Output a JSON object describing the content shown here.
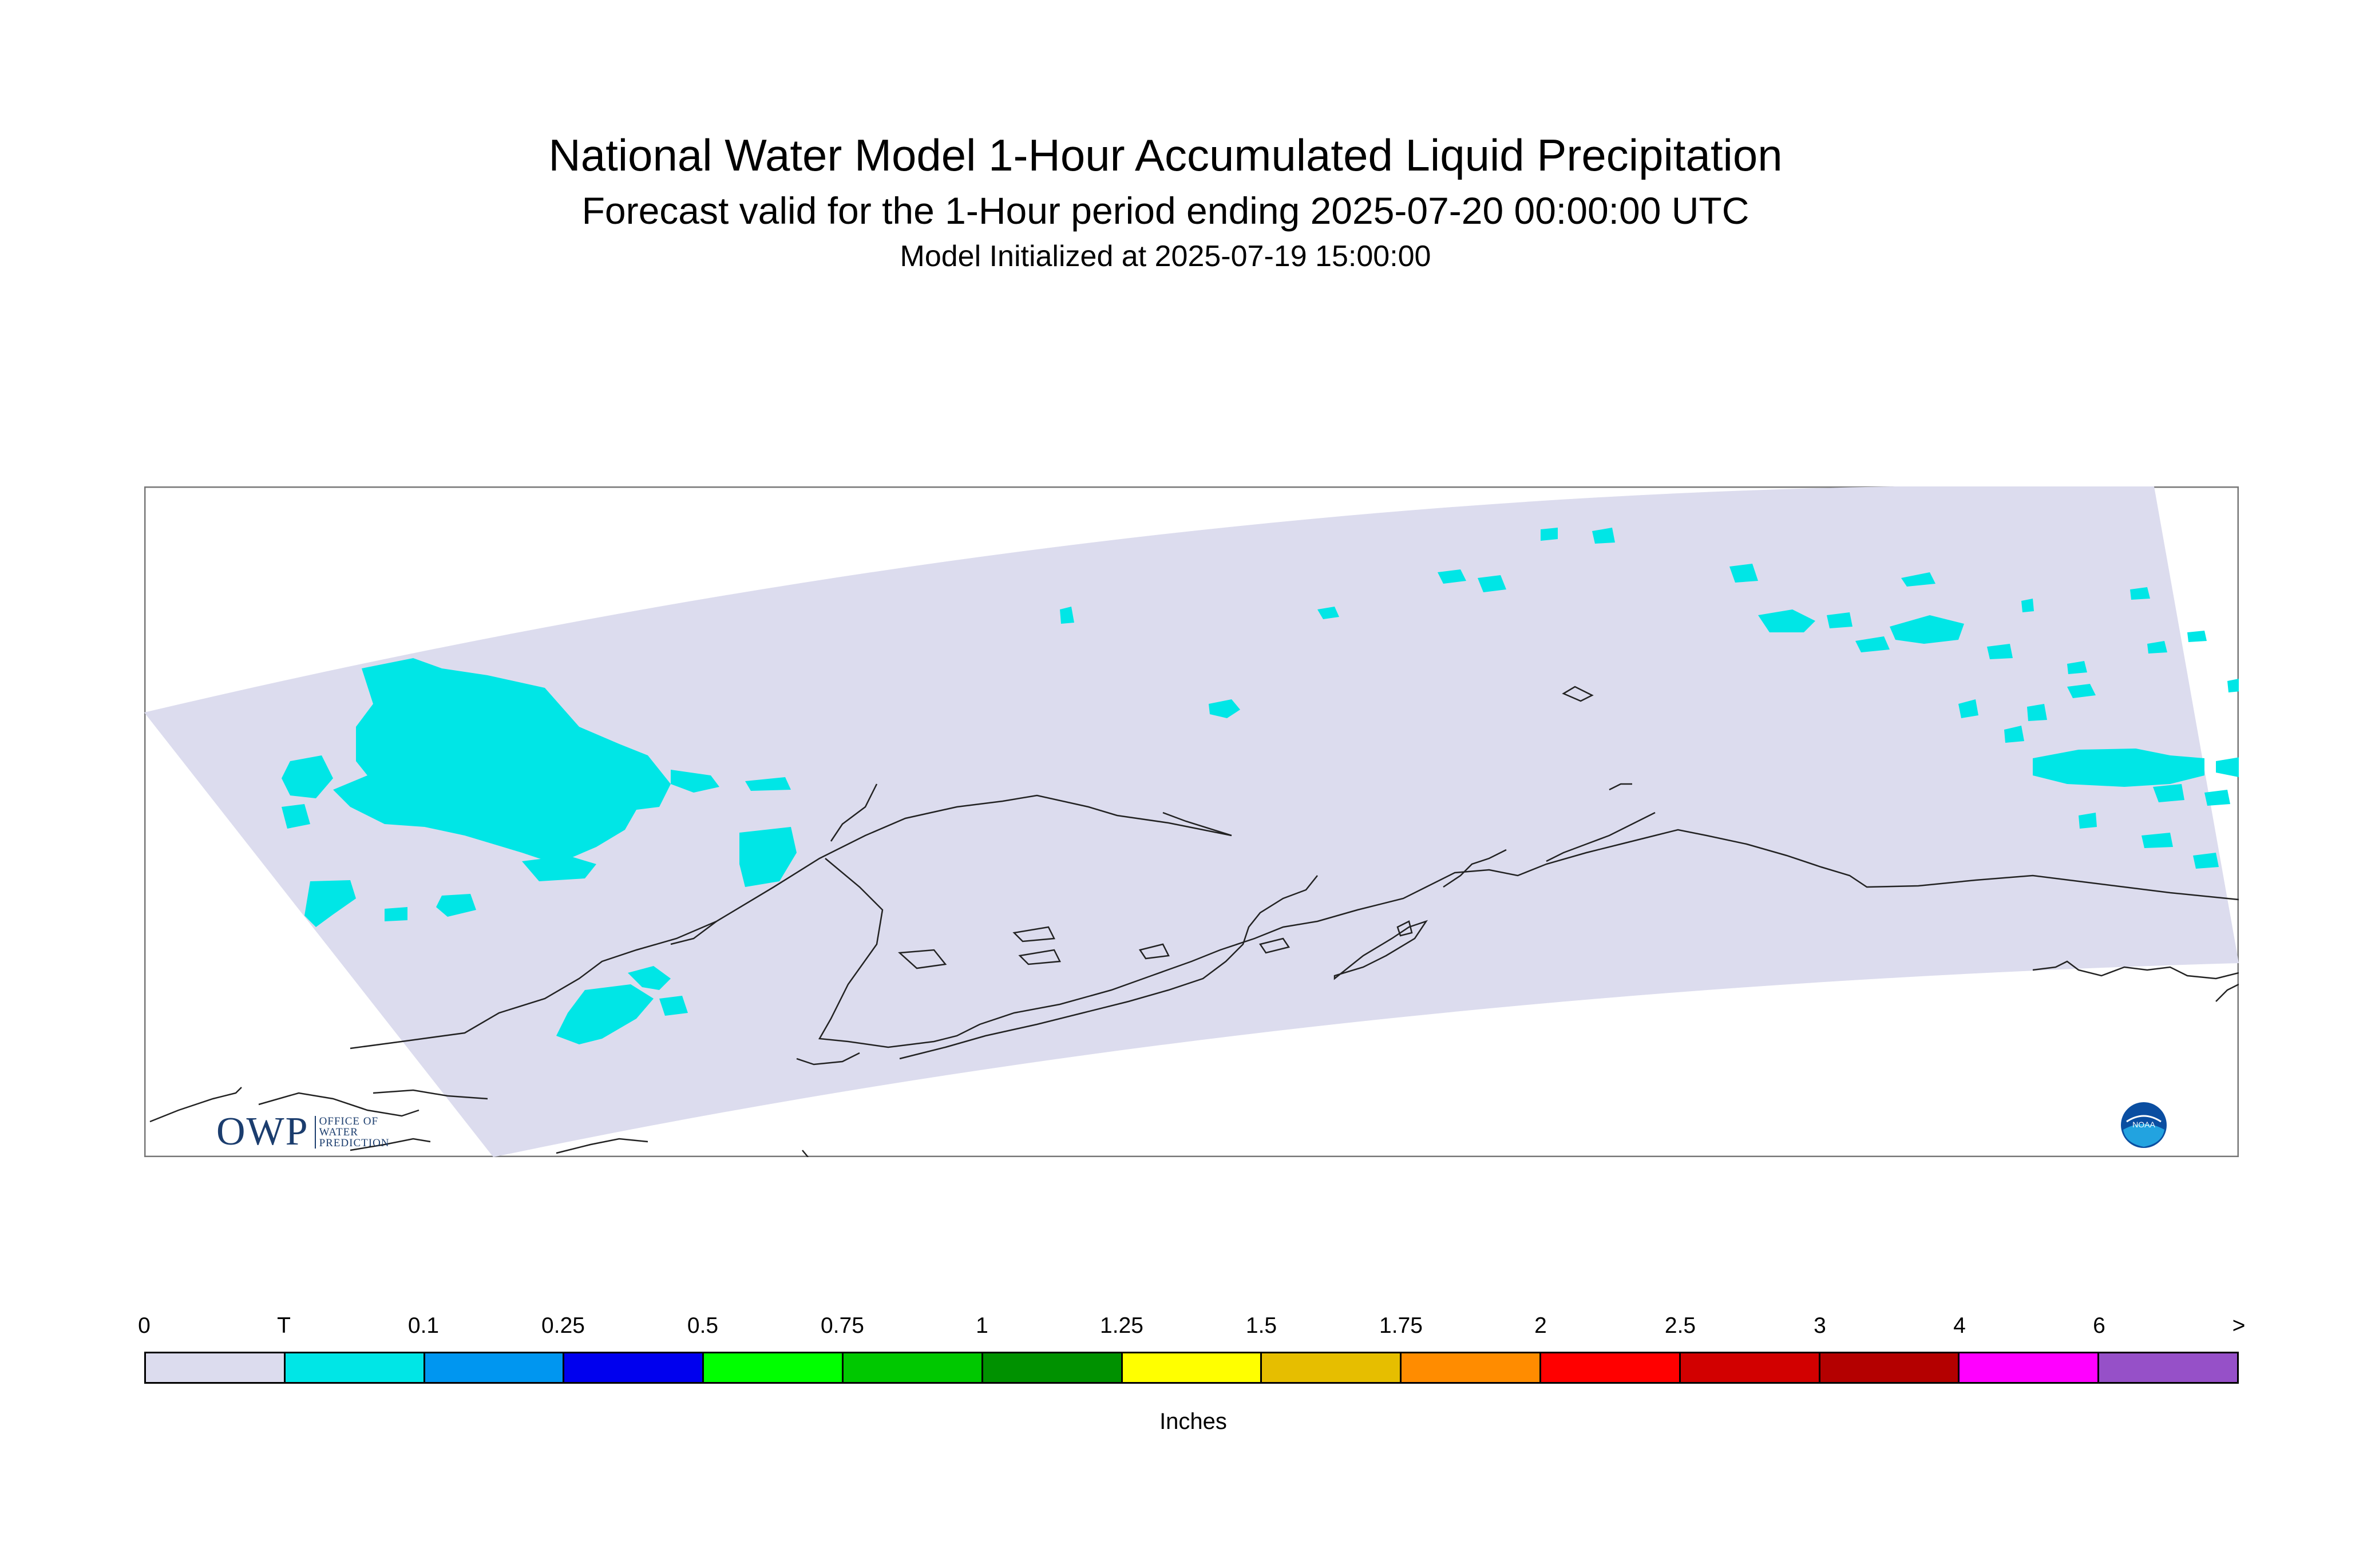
{
  "title": {
    "main": "National Water Model 1-Hour Accumulated Liquid Precipitation",
    "valid": "Forecast valid for the 1-Hour period ending 2025-07-20 00:00:00 UTC",
    "init": "Model Initialized at 2025-07-19 15:00:00"
  },
  "map": {
    "region": "Alaska",
    "domain_fill": "#dcdcee",
    "precip_fill": "#00e6e6",
    "coast_color": "#222222"
  },
  "logos": {
    "owp_word": "OWP",
    "owp_sub": [
      "OFFICE OF",
      "WATER",
      "PREDICTION"
    ],
    "noaa_text": "NOAA"
  },
  "legend": {
    "labels": [
      "0",
      "T",
      "0.1",
      "0.25",
      "0.5",
      "0.75",
      "1",
      "1.25",
      "1.5",
      "1.75",
      "2",
      "2.5",
      "3",
      "4",
      "6",
      ">"
    ],
    "colors": [
      "#dcdcee",
      "#00e6e6",
      "#0096f0",
      "#0000ee",
      "#00ff00",
      "#00c800",
      "#009100",
      "#ffff00",
      "#e6be00",
      "#ff8c00",
      "#ff0000",
      "#d20000",
      "#b40000",
      "#ff00ff",
      "#9650c8"
    ],
    "unit": "Inches"
  }
}
